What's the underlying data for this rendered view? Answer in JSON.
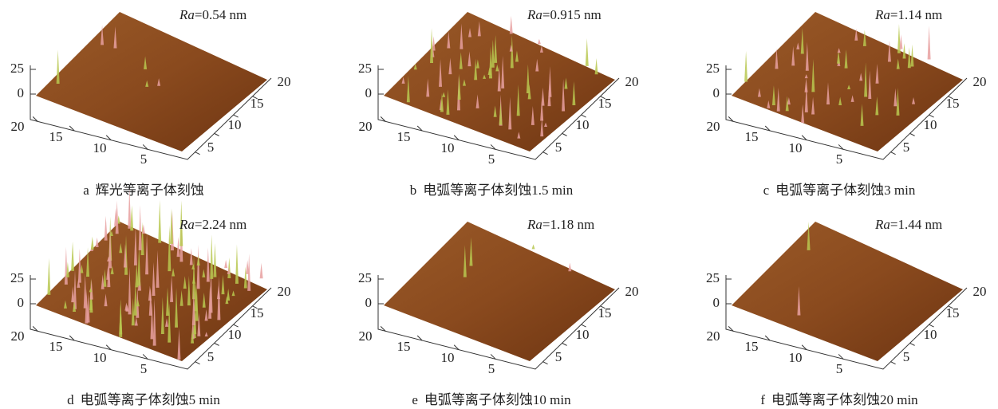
{
  "axes": {
    "z_ticks": [
      "25",
      "0"
    ],
    "x_ticks": [
      "20",
      "15",
      "10",
      "5"
    ],
    "y_ticks": [
      "5",
      "10",
      "15",
      "20"
    ]
  },
  "panels": [
    {
      "ra": {
        "symbol": "Ra",
        "value": "=0.54 nm"
      },
      "label": "a",
      "caption": "辉光等离子体刻蚀"
    },
    {
      "ra": {
        "symbol": "Ra",
        "value": "=0.915 nm"
      },
      "label": "b",
      "caption": "电弧等离子体刻蚀1.5 min"
    },
    {
      "ra": {
        "symbol": "Ra",
        "value": "=1.14 nm"
      },
      "label": "c",
      "caption": "电弧等离子体刻蚀3 min"
    },
    {
      "ra": {
        "symbol": "Ra",
        "value": "=2.24 nm"
      },
      "label": "d",
      "caption": "电弧等离子体刻蚀5 min"
    },
    {
      "ra": {
        "symbol": "Ra",
        "value": "=1.18 nm"
      },
      "label": "e",
      "caption": "电弧等离子体刻蚀10 min"
    },
    {
      "ra": {
        "symbol": "Ra",
        "value": "=1.44 nm"
      },
      "label": "f",
      "caption": "电弧等离子体刻蚀20 min"
    }
  ]
}
